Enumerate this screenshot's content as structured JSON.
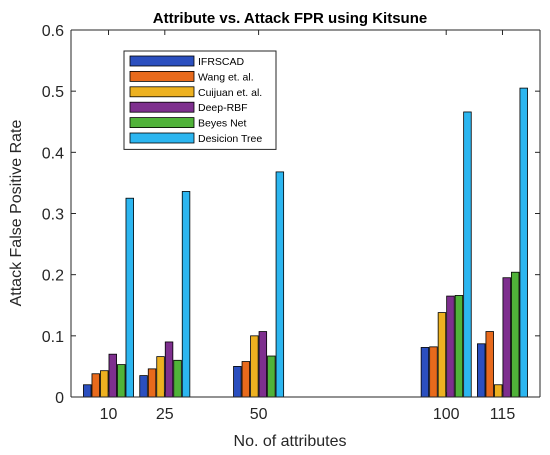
{
  "chart_data": {
    "type": "bar",
    "title": "Attribute vs. Attack FPR using Kitsune",
    "xlabel": "No. of attributes",
    "ylabel": "Attack False Positive Rate",
    "ylim": [
      0,
      0.6
    ],
    "yticks": [
      "0",
      "0.1",
      "0.2",
      "0.3",
      "0.4",
      "0.5",
      "0.6"
    ],
    "x": [
      10,
      25,
      50,
      100,
      115
    ],
    "xticks": [
      "10",
      "25",
      "50",
      "100",
      "115"
    ],
    "xlim": [
      0,
      125
    ],
    "grid": false,
    "legend_position": "top-left",
    "series": [
      {
        "name": "IFRSCAD",
        "color": "#2b4fbf",
        "values": [
          0.02,
          0.035,
          0.05,
          0.081,
          0.087
        ]
      },
      {
        "name": "Wang et. al.",
        "color": "#e86a1c",
        "values": [
          0.038,
          0.046,
          0.058,
          0.082,
          0.107
        ]
      },
      {
        "name": "Cuijuan et. al.",
        "color": "#edb120",
        "values": [
          0.043,
          0.066,
          0.1,
          0.138,
          0.02
        ]
      },
      {
        "name": "Deep-RBF",
        "color": "#7e2f8e",
        "values": [
          0.07,
          0.09,
          0.107,
          0.165,
          0.195
        ]
      },
      {
        "name": "Beyes Net",
        "color": "#50b339",
        "values": [
          0.053,
          0.06,
          0.067,
          0.166,
          0.204
        ]
      },
      {
        "name": "Desicion Tree",
        "color": "#2cb6f0",
        "values": [
          0.325,
          0.336,
          0.368,
          0.466,
          0.505
        ]
      }
    ]
  }
}
